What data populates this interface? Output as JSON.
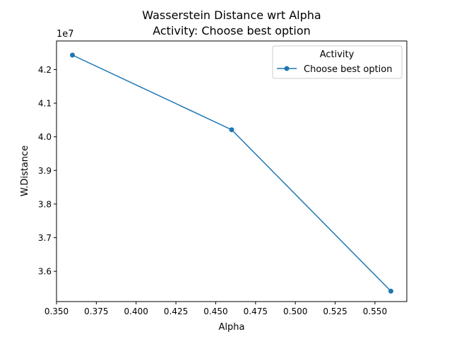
{
  "chart_data": {
    "type": "line",
    "title": "Wasserstein Distance wrt Alpha",
    "subtitle": "Activity: Choose best option",
    "xlabel": "Alpha",
    "ylabel": "W.Distance",
    "y_offset_label": "1e7",
    "xlim": [
      0.35,
      0.57
    ],
    "ylim": [
      3.51,
      4.285
    ],
    "x_ticks": [
      0.35,
      0.375,
      0.4,
      0.425,
      0.45,
      0.475,
      0.5,
      0.525,
      0.55
    ],
    "x_tick_labels": [
      "0.350",
      "0.375",
      "0.400",
      "0.425",
      "0.450",
      "0.475",
      "0.500",
      "0.525",
      "0.550"
    ],
    "y_ticks": [
      3.6,
      3.7,
      3.8,
      3.9,
      4.0,
      4.1,
      4.2
    ],
    "y_tick_labels": [
      "3.6",
      "3.7",
      "3.8",
      "3.9",
      "4.0",
      "4.1",
      "4.2"
    ],
    "grid": false,
    "legend": {
      "title": "Activity",
      "placement": "upper right"
    },
    "series": [
      {
        "name": "Choose best option",
        "color": "#1f77b4",
        "marker": "circle",
        "x": [
          0.36,
          0.46,
          0.56
        ],
        "y": [
          4.243,
          4.021,
          3.541
        ]
      }
    ]
  }
}
